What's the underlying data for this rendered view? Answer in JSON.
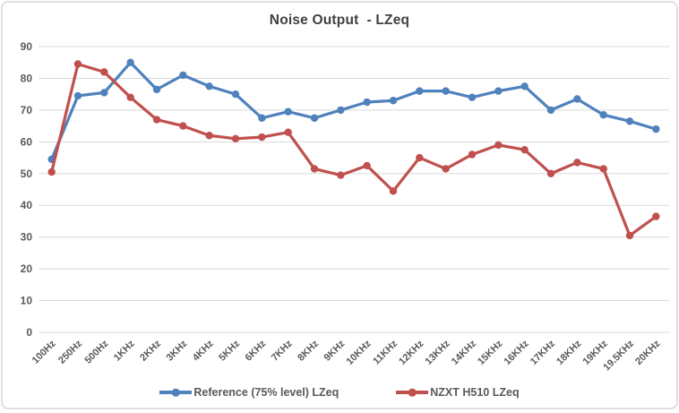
{
  "chart_data": {
    "type": "line",
    "title": "Noise Output  - LZeq",
    "xlabel": "",
    "ylabel": "",
    "ylim": [
      0,
      90
    ],
    "ytick_step": 10,
    "grid": true,
    "legend_position": "bottom",
    "categories": [
      "100Hz",
      "250Hz",
      "500Hz",
      "1KHz",
      "2KHz",
      "3KHz",
      "4KHz",
      "5KHz",
      "6KHz",
      "7KHz",
      "8KHz",
      "9KHz",
      "10KHz",
      "11KHz",
      "12KHz",
      "13KHz",
      "14KHz",
      "15KHz",
      "16KHz",
      "17KHz",
      "18KHz",
      "19KHz",
      "19.5KHz",
      "20KHz"
    ],
    "series": [
      {
        "name": "Reference (75% level) LZeq",
        "color": "#4F81BD",
        "values": [
          54.5,
          74.5,
          75.5,
          85,
          76.5,
          81,
          77.5,
          75,
          67.5,
          69.5,
          67.5,
          70,
          72.5,
          73,
          76,
          76,
          74,
          76,
          77.5,
          70,
          73.5,
          68.5,
          66.5,
          64
        ]
      },
      {
        "name": "NZXT H510 LZeq",
        "color": "#C0504D",
        "values": [
          50.5,
          84.5,
          82,
          74,
          67,
          65,
          62,
          61,
          61.5,
          63,
          51.5,
          49.5,
          52.5,
          44.5,
          55,
          51.5,
          56,
          59,
          57.5,
          50,
          53.5,
          51.5,
          30.5,
          36.5
        ]
      }
    ]
  },
  "colors": {
    "grid": "#d9d9d9",
    "axis_text": "#595959",
    "title_text": "#404040",
    "card_border": "#e0e0e0"
  }
}
